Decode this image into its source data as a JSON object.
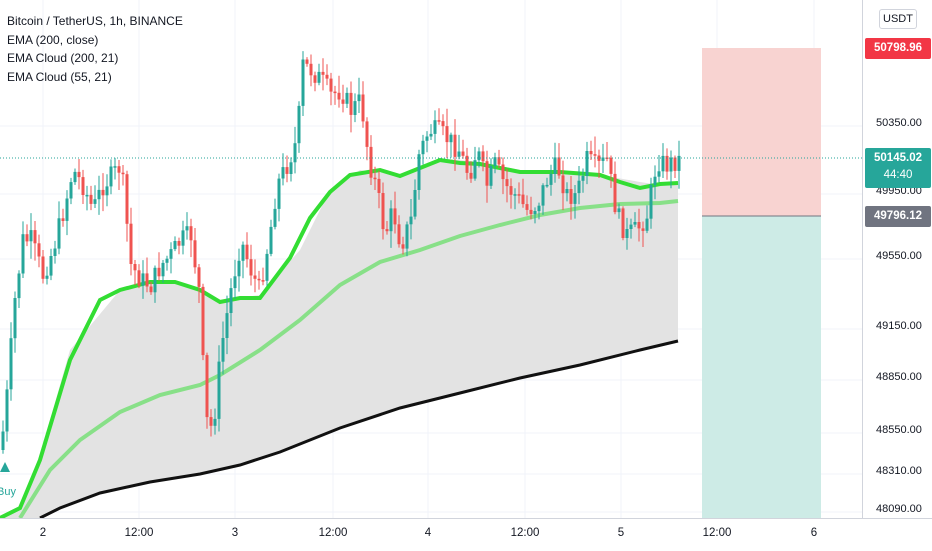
{
  "legend": {
    "symbol": "Bitcoin / TetherUS, 1h, BINANCE",
    "indicators": [
      "EMA (200, close)",
      "EMA Cloud (200, 21)",
      "EMA Cloud (55, 21)"
    ]
  },
  "price_axis": {
    "currency": "USDT",
    "ticks": [
      "50350.00",
      "49950.00",
      "49550.00",
      "49150.00",
      "48850.00",
      "48550.00",
      "48310.00",
      "48090.00"
    ],
    "stop_badge": "50798.96",
    "current_price": "50145.02",
    "countdown": "44:40",
    "entry_badge": "49796.12"
  },
  "time_axis": {
    "ticks": [
      "2",
      "12:00",
      "3",
      "12:00",
      "4",
      "12:00",
      "5",
      "12:00",
      "6"
    ]
  },
  "signal": {
    "label": "Buy"
  },
  "colors": {
    "up": "#26a69a",
    "down": "#ef5350",
    "ema_fast": "#33dd33",
    "ema_mid": "#88e088",
    "ema_200": "#111111",
    "cloud": "#e3e3e3",
    "stop_zone": "#f8d3d1",
    "target_zone": "#cdebe6",
    "stop_badge": "#f23645",
    "current_badge": "#26a69a",
    "entry_badge": "#707480"
  }
}
